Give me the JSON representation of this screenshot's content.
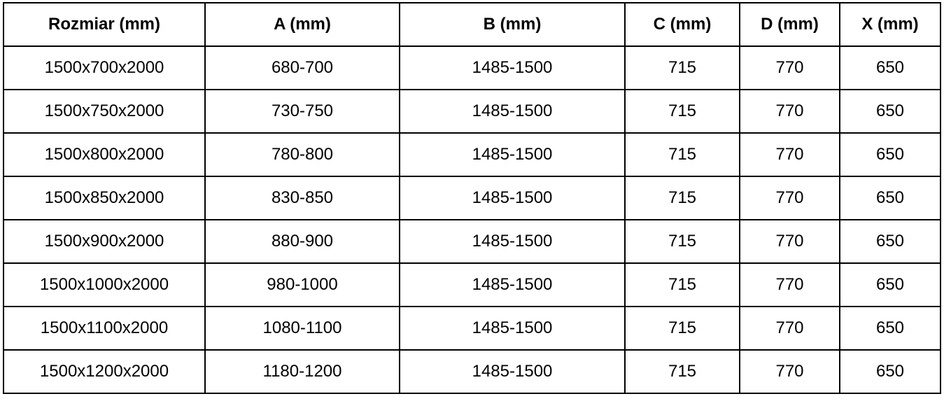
{
  "table": {
    "headers": [
      "Rozmiar (mm)",
      "A (mm)",
      "B (mm)",
      "C (mm)",
      "D (mm)",
      "X (mm)"
    ],
    "rows": [
      [
        "1500x700x2000",
        "680-700",
        "1485-1500",
        "715",
        "770",
        "650"
      ],
      [
        "1500x750x2000",
        "730-750",
        "1485-1500",
        "715",
        "770",
        "650"
      ],
      [
        "1500x800x2000",
        "780-800",
        "1485-1500",
        "715",
        "770",
        "650"
      ],
      [
        "1500x850x2000",
        "830-850",
        "1485-1500",
        "715",
        "770",
        "650"
      ],
      [
        "1500x900x2000",
        "880-900",
        "1485-1500",
        "715",
        "770",
        "650"
      ],
      [
        "1500x1000x2000",
        "980-1000",
        "1485-1500",
        "715",
        "770",
        "650"
      ],
      [
        "1500x1100x2000",
        "1080-1100",
        "1485-1500",
        "715",
        "770",
        "650"
      ],
      [
        "1500x1200x2000",
        "1180-1200",
        "1485-1500",
        "715",
        "770",
        "650"
      ]
    ]
  }
}
